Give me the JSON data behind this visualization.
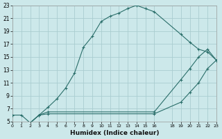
{
  "xlabel": "Humidex (Indice chaleur)",
  "bg_color": "#cce8ea",
  "grid_color": "#aacdd0",
  "line_color": "#2a6e6a",
  "xlim": [
    0,
    23
  ],
  "ylim": [
    5,
    23
  ],
  "xtick_vals": [
    0,
    1,
    2,
    3,
    4,
    5,
    6,
    7,
    8,
    9,
    10,
    11,
    12,
    13,
    14,
    15,
    16,
    18,
    19,
    20,
    21,
    22,
    23
  ],
  "ytick_vals": [
    5,
    7,
    9,
    11,
    13,
    15,
    17,
    19,
    21,
    23
  ],
  "line1_x": [
    0,
    1,
    2,
    3,
    4,
    5,
    6,
    7,
    8,
    9,
    10,
    11,
    12,
    13,
    14,
    15,
    16,
    19,
    20,
    21,
    22,
    23
  ],
  "line1_y": [
    6.0,
    6.0,
    4.8,
    6.0,
    7.2,
    8.5,
    10.2,
    12.5,
    16.5,
    18.2,
    20.5,
    21.3,
    21.8,
    22.5,
    23.0,
    22.5,
    22.0,
    18.5,
    17.3,
    16.2,
    15.8,
    14.5
  ],
  "line2_x": [
    2,
    3,
    4,
    16,
    19,
    20,
    21,
    22,
    23
  ],
  "line2_y": [
    4.8,
    6.0,
    6.5,
    6.5,
    11.5,
    13.2,
    15.0,
    16.2,
    14.5
  ],
  "line3_x": [
    2,
    3,
    4,
    16,
    19,
    20,
    21,
    22,
    23
  ],
  "line3_y": [
    4.8,
    6.0,
    6.2,
    6.2,
    8.0,
    9.5,
    11.0,
    13.2,
    14.5
  ]
}
